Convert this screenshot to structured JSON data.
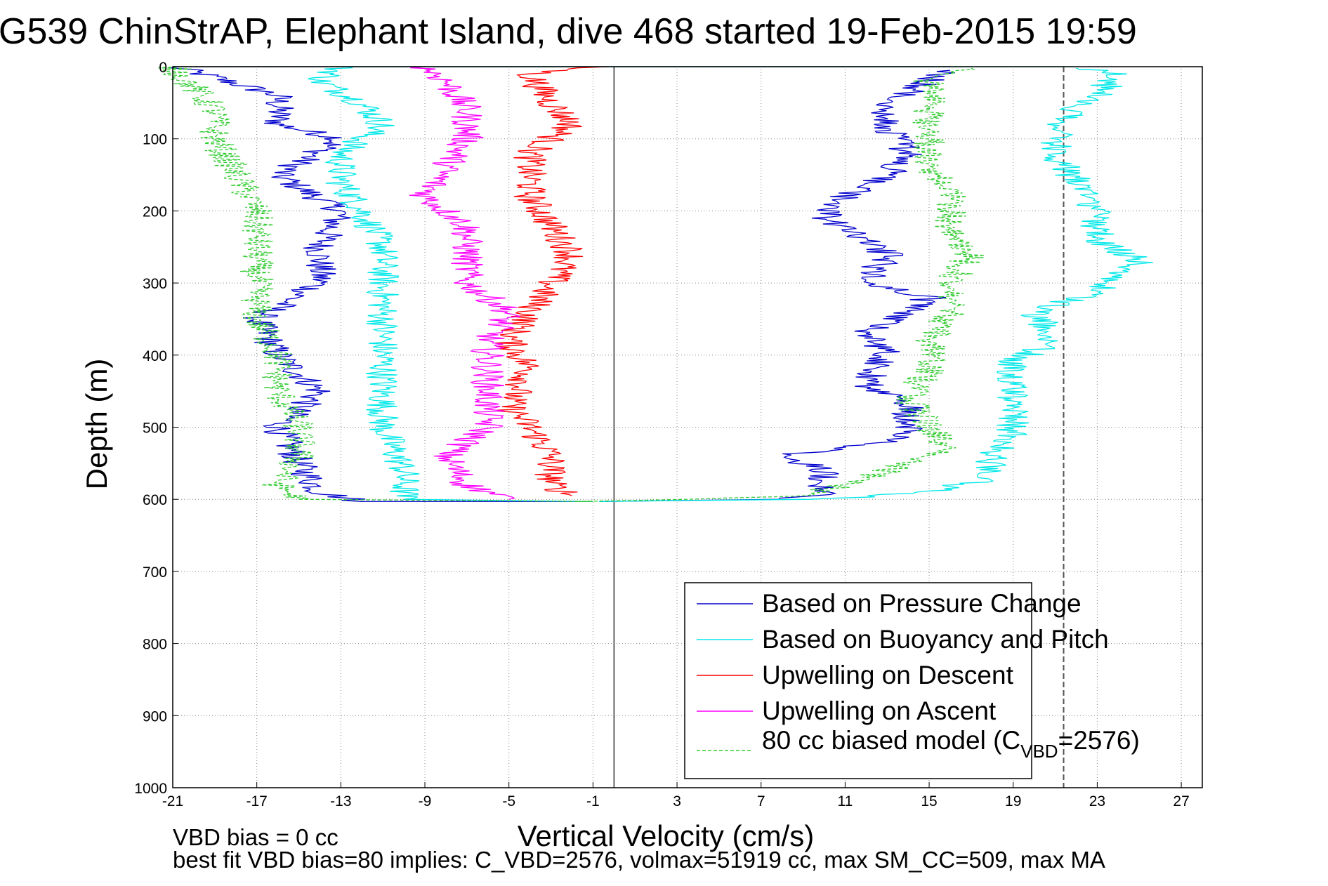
{
  "chart_data": {
    "type": "line",
    "title": "G539 ChinStrAP, Elephant Island, dive 468 started 19-Feb-2015 19:59",
    "xlabel": "Vertical Velocity (cm/s)",
    "ylabel": "Depth (m)",
    "xlim": [
      -21,
      28
    ],
    "ylim": [
      0,
      1000
    ],
    "y_reversed": true,
    "grid": true,
    "xticks": [
      -21,
      -17,
      -13,
      -9,
      -5,
      -1,
      3,
      7,
      11,
      15,
      19,
      23,
      27
    ],
    "yticks": [
      0,
      100,
      200,
      300,
      400,
      500,
      600,
      700,
      800,
      900,
      1000
    ],
    "legend_position": "bottom-right",
    "reference_lines": {
      "solid_x": 0,
      "dashed_x": 21.4
    },
    "series": [
      {
        "name": "Based on Pressure Change",
        "color": "#0000cc",
        "style": "solid",
        "descent": [
          [
            -21,
            0
          ],
          [
            -19,
            15
          ],
          [
            -16,
            40
          ],
          [
            -16,
            80
          ],
          [
            -13,
            100
          ],
          [
            -16,
            150
          ],
          [
            -13,
            200
          ],
          [
            -14,
            250
          ],
          [
            -14,
            300
          ],
          [
            -17,
            350
          ],
          [
            -16,
            400
          ],
          [
            -14,
            450
          ],
          [
            -16,
            500
          ],
          [
            -15,
            550
          ],
          [
            -14,
            590
          ],
          [
            -12,
            603
          ]
        ],
        "ascent": [
          [
            -1,
            603
          ],
          [
            8,
            600
          ],
          [
            10,
            595
          ],
          [
            10,
            580
          ],
          [
            10,
            560
          ],
          [
            8,
            540
          ],
          [
            13,
            520
          ],
          [
            14,
            500
          ],
          [
            14,
            470
          ],
          [
            12,
            440
          ],
          [
            13,
            400
          ],
          [
            12,
            370
          ],
          [
            14,
            340
          ],
          [
            15,
            320
          ],
          [
            12,
            300
          ],
          [
            13,
            260
          ],
          [
            10,
            210
          ],
          [
            11,
            180
          ],
          [
            13,
            150
          ],
          [
            14,
            120
          ],
          [
            13,
            80
          ],
          [
            13,
            50
          ],
          [
            15,
            20
          ],
          [
            16,
            5
          ]
        ]
      },
      {
        "name": "Based on Buoyancy and Pitch",
        "color": "#00e8e8",
        "style": "solid",
        "descent": [
          [
            -13,
            0
          ],
          [
            -14,
            20
          ],
          [
            -12,
            50
          ],
          [
            -11,
            80
          ],
          [
            -13,
            120
          ],
          [
            -13,
            160
          ],
          [
            -12,
            200
          ],
          [
            -11,
            250
          ],
          [
            -11,
            300
          ],
          [
            -11,
            350
          ],
          [
            -11,
            400
          ],
          [
            -11,
            450
          ],
          [
            -11,
            500
          ],
          [
            -10,
            560
          ],
          [
            -10,
            600
          ]
        ],
        "ascent": [
          [
            -1,
            603
          ],
          [
            10,
            600
          ],
          [
            15,
            590
          ],
          [
            18,
            570
          ],
          [
            18,
            540
          ],
          [
            19,
            510
          ],
          [
            19,
            470
          ],
          [
            19,
            440
          ],
          [
            19,
            410
          ],
          [
            21,
            380
          ],
          [
            20,
            340
          ],
          [
            23,
            310
          ],
          [
            25,
            270
          ],
          [
            23,
            240
          ],
          [
            23,
            200
          ],
          [
            22,
            160
          ],
          [
            21,
            120
          ],
          [
            21,
            80
          ],
          [
            23,
            40
          ],
          [
            24,
            10
          ],
          [
            22,
            2
          ]
        ]
      },
      {
        "name": "Upwelling on Descent",
        "color": "#ff0000",
        "style": "solid",
        "points": [
          [
            -1,
            0
          ],
          [
            -4,
            10
          ],
          [
            -3,
            50
          ],
          [
            -2,
            80
          ],
          [
            -4,
            120
          ],
          [
            -4,
            180
          ],
          [
            -3,
            220
          ],
          [
            -2,
            260
          ],
          [
            -3,
            300
          ],
          [
            -4,
            340
          ],
          [
            -5,
            380
          ],
          [
            -4,
            420
          ],
          [
            -5,
            470
          ],
          [
            -4,
            500
          ],
          [
            -3,
            540
          ],
          [
            -3,
            580
          ],
          [
            -2,
            595
          ]
        ]
      },
      {
        "name": "Upwelling on Ascent",
        "color": "#ff00ff",
        "style": "solid",
        "points": [
          [
            -9,
            0
          ],
          [
            -8,
            20
          ],
          [
            -7,
            60
          ],
          [
            -7,
            100
          ],
          [
            -8,
            140
          ],
          [
            -9,
            180
          ],
          [
            -7,
            220
          ],
          [
            -7,
            260
          ],
          [
            -7,
            300
          ],
          [
            -5,
            340
          ],
          [
            -6,
            380
          ],
          [
            -6,
            420
          ],
          [
            -6,
            460
          ],
          [
            -6,
            500
          ],
          [
            -8,
            540
          ],
          [
            -7,
            580
          ],
          [
            -5,
            600
          ]
        ]
      },
      {
        "name": "80 cc biased model (C",
        "name_sub": "VBD",
        "name_tail": "=2576)",
        "color": "#33cc33",
        "style": "dashed",
        "descent": [
          [
            -21,
            0
          ],
          [
            -20,
            30
          ],
          [
            -19,
            60
          ],
          [
            -19,
            100
          ],
          [
            -18,
            150
          ],
          [
            -17,
            200
          ],
          [
            -17,
            250
          ],
          [
            -17,
            300
          ],
          [
            -17,
            350
          ],
          [
            -16,
            400
          ],
          [
            -16,
            450
          ],
          [
            -15,
            500
          ],
          [
            -15,
            540
          ],
          [
            -16,
            580
          ],
          [
            -15,
            600
          ]
        ],
        "ascent": [
          [
            -1,
            603
          ],
          [
            9,
            595
          ],
          [
            11,
            580
          ],
          [
            13,
            560
          ],
          [
            16,
            530
          ],
          [
            15,
            500
          ],
          [
            14,
            460
          ],
          [
            15,
            420
          ],
          [
            15,
            380
          ],
          [
            16,
            340
          ],
          [
            16,
            300
          ],
          [
            17,
            260
          ],
          [
            16,
            220
          ],
          [
            16,
            180
          ],
          [
            15,
            140
          ],
          [
            15,
            100
          ],
          [
            15,
            60
          ],
          [
            15,
            20
          ],
          [
            17,
            2
          ]
        ]
      }
    ]
  },
  "notes": {
    "line1": "VBD bias = 0 cc",
    "line2": "best fit VBD bias=80 implies: C_VBD=2576, volmax=51919 cc, max SM_CC=509, max MA"
  }
}
